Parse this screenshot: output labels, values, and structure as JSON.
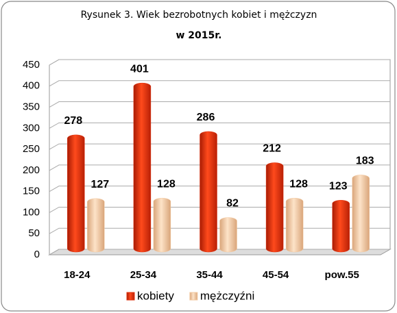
{
  "chart_data": {
    "type": "bar",
    "title": "Rysunek 3. Wiek bezrobotnych  kobiet i mężczyzn",
    "subtitle": "w 2015r.",
    "categories": [
      "18-24",
      "25-34",
      "35-44",
      "45-54",
      "pow.55"
    ],
    "series": [
      {
        "name": "kobiety",
        "color": "#e0300e",
        "values": [
          278,
          401,
          286,
          212,
          123
        ]
      },
      {
        "name": "mężczyźni",
        "color": "#f3c9a0",
        "values": [
          127,
          128,
          82,
          128,
          183
        ]
      }
    ],
    "ylim": [
      0,
      450
    ],
    "yticks": [
      0,
      50,
      100,
      150,
      200,
      250,
      300,
      350,
      400,
      450
    ],
    "grid": true,
    "legend": "bottom"
  }
}
